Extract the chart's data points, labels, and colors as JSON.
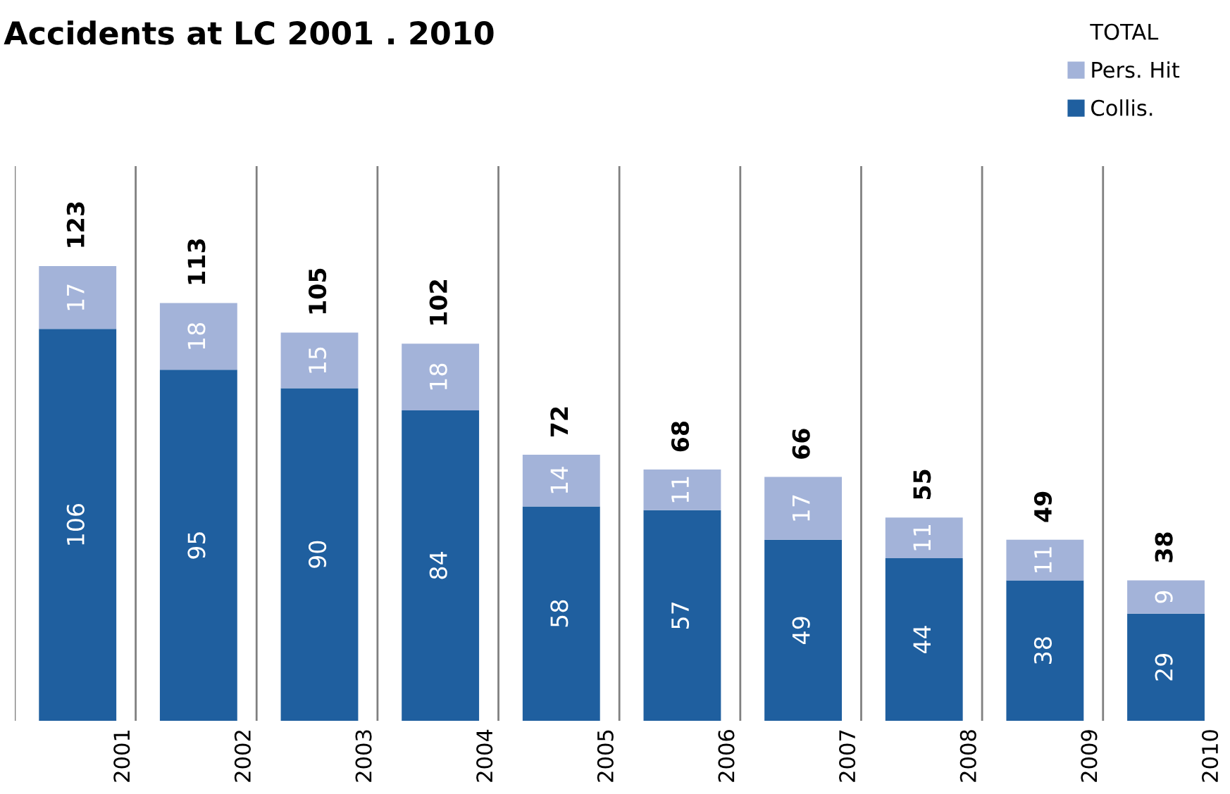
{
  "chart_data": {
    "type": "bar",
    "title": "Accidents at LC 2001 . 2010",
    "legend_title": "TOTAL",
    "categories": [
      "2001",
      "2002",
      "2003",
      "2004",
      "2005",
      "2006",
      "2007",
      "2008",
      "2009",
      "2010"
    ],
    "stacked": true,
    "data_labels": true,
    "grid": "x",
    "legend": "top right",
    "series": [
      {
        "name": "Collis.",
        "color": "#1f5f9f",
        "values": [
          106,
          95,
          90,
          84,
          58,
          57,
          49,
          44,
          38,
          29
        ]
      },
      {
        "name": "Pers. Hit",
        "color": "#a3b3d9",
        "values": [
          17,
          18,
          15,
          18,
          14,
          11,
          17,
          11,
          11,
          9
        ]
      }
    ],
    "totals": [
      "123",
      "113",
      "105",
      "102",
      "72",
      "68",
      "66",
      "55",
      "49",
      "38"
    ]
  }
}
